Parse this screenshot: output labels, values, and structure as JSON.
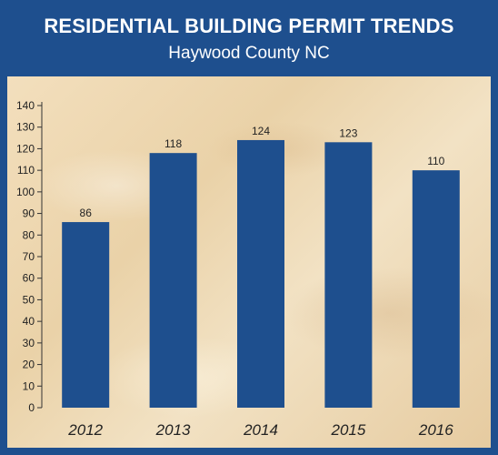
{
  "header": {
    "title": "RESIDENTIAL BUILDING PERMIT TRENDS",
    "subtitle": "Haywood County NC"
  },
  "colors": {
    "frame": "#1e4f8e",
    "bar": "#1e4f8e",
    "axis": "#333333"
  },
  "chart_data": {
    "type": "bar",
    "categories": [
      "2012",
      "2013",
      "2014",
      "2015",
      "2016"
    ],
    "values": [
      86,
      118,
      124,
      123,
      110
    ],
    "data_labels": [
      "86",
      "118",
      "124",
      "123",
      "110"
    ],
    "ylim": [
      0,
      140
    ],
    "yticks": [
      0,
      10,
      20,
      30,
      40,
      50,
      60,
      70,
      80,
      90,
      100,
      110,
      120,
      130,
      140
    ],
    "grid": false,
    "legend": "none"
  }
}
